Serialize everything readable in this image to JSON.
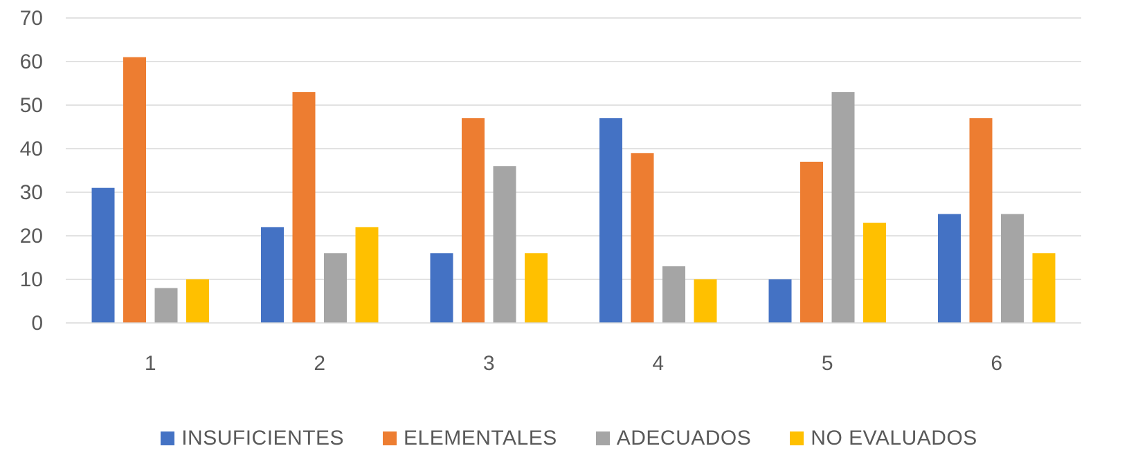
{
  "chart_data": {
    "type": "bar",
    "categories": [
      "1",
      "2",
      "3",
      "4",
      "5",
      "6"
    ],
    "series": [
      {
        "name": "INSUFICIENTES",
        "color": "#4472C4",
        "values": [
          31,
          22,
          16,
          47,
          10,
          25
        ]
      },
      {
        "name": "ELEMENTALES",
        "color": "#ED7D31",
        "values": [
          61,
          53,
          47,
          39,
          37,
          47
        ]
      },
      {
        "name": "ADECUADOS",
        "color": "#A5A5A5",
        "values": [
          8,
          16,
          36,
          13,
          53,
          25
        ]
      },
      {
        "name": "NO EVALUADOS",
        "color": "#FFC000",
        "values": [
          10,
          22,
          16,
          10,
          23,
          16
        ]
      }
    ],
    "yticks": [
      "0",
      "10",
      "20",
      "30",
      "40",
      "50",
      "60",
      "70"
    ],
    "ylim": [
      0,
      70
    ],
    "grid": true,
    "legend_position": "bottom",
    "title": "",
    "xlabel": "",
    "ylabel": ""
  }
}
